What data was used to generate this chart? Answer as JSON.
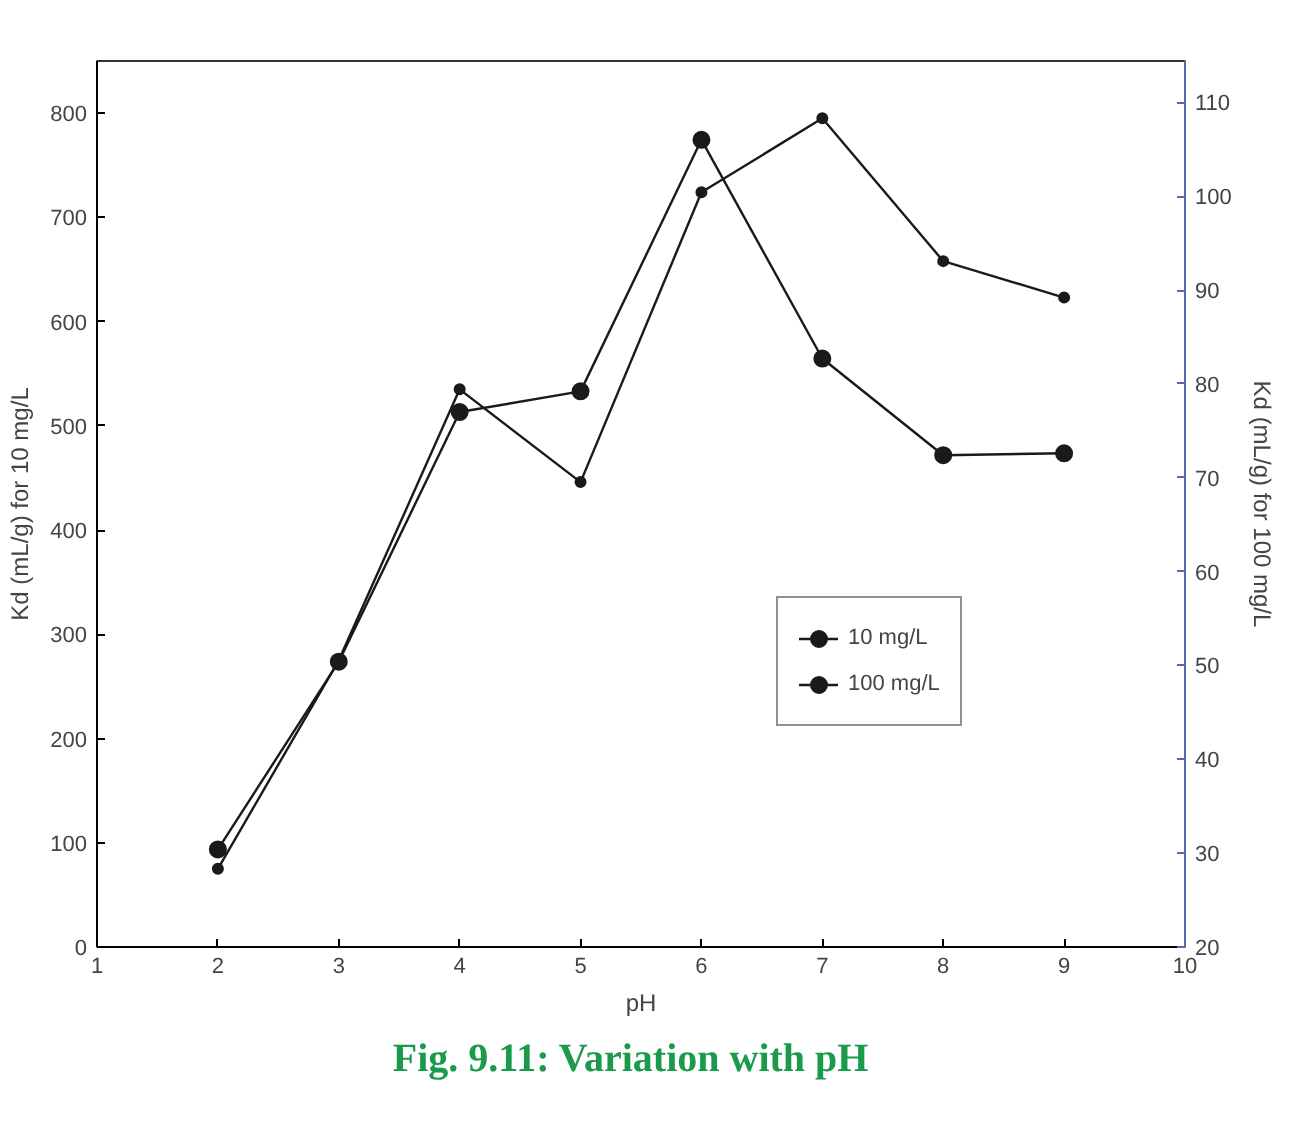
{
  "chart_data": {
    "type": "line",
    "title": "Fig.  9.11: Variation with  pH",
    "xlabel": "pH",
    "ylabel": "Kd (mL/g) for 10 mg/L",
    "y2label": "Kd (mL/g) for 100 mg/L",
    "x": [
      2,
      3,
      4,
      5,
      6,
      7,
      8,
      9
    ],
    "series": [
      {
        "name": "10 mg/L",
        "color": "#1a1a1a",
        "values": [
          75,
          275,
          535,
          446,
          724,
          795,
          658,
          623
        ]
      },
      {
        "name": "100 mg/L",
        "color": "#1a1a1a",
        "axis": "y2",
        "values": [
          30.4,
          50.4,
          77,
          79.2,
          106,
          82.7,
          72.4,
          72.6
        ]
      }
    ],
    "xlim": [
      1,
      10
    ],
    "xticks": [
      1,
      2,
      3,
      4,
      5,
      6,
      7,
      8,
      9,
      10
    ],
    "ylim": [
      0,
      850
    ],
    "yticks": [
      0,
      100,
      200,
      300,
      400,
      500,
      600,
      700,
      800
    ],
    "y2lim": [
      20,
      114.4
    ],
    "y2ticks": [
      20,
      30,
      40,
      50,
      60,
      70,
      80,
      90,
      100,
      110
    ],
    "grid": false,
    "legend": "right",
    "marker": "circle",
    "line_style": "solid"
  }
}
